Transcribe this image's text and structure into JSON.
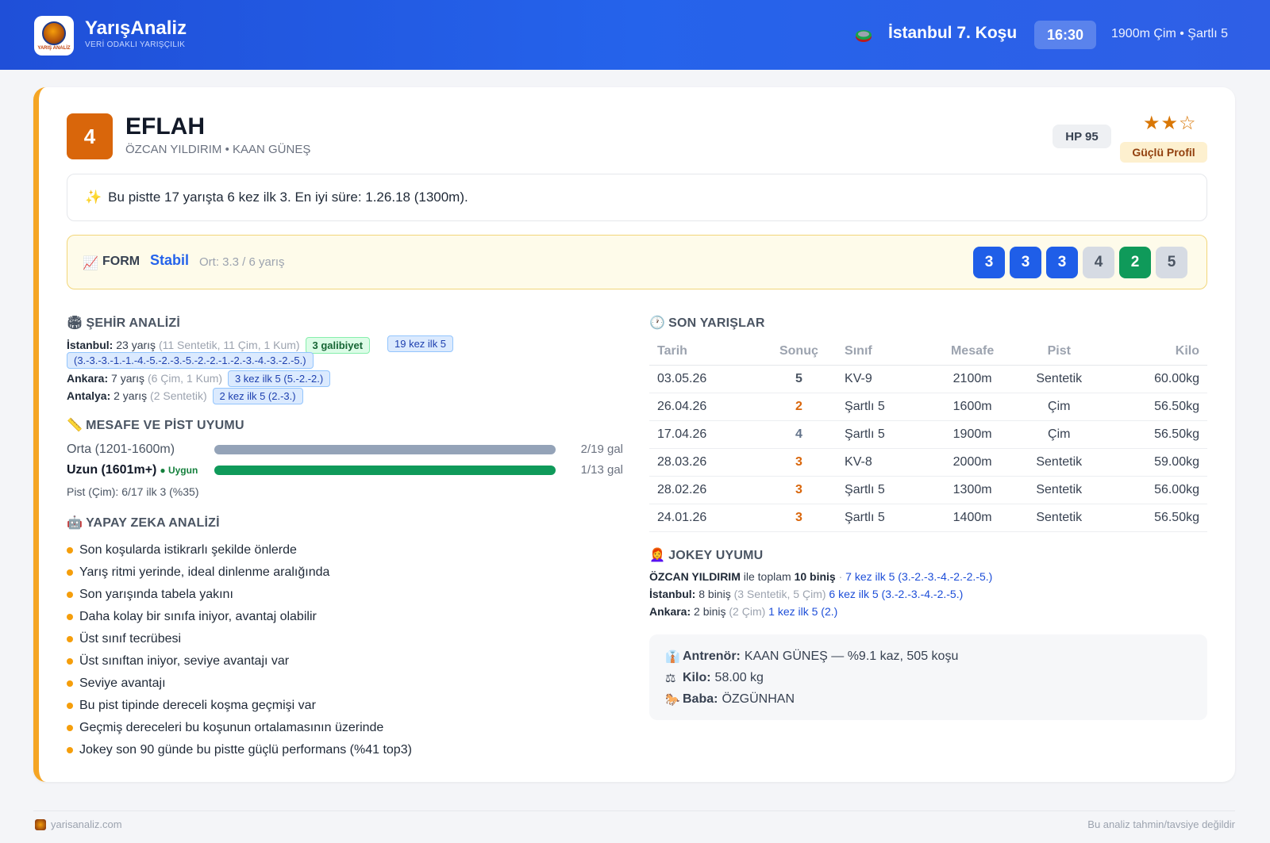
{
  "header": {
    "brand": "YarışAnaliz",
    "tagline": "VERİ ODAKLI YARIŞÇILIK",
    "logo_text": "YARIŞ ANALİZ",
    "race_title": "İstanbul 7. Koşu",
    "race_time": "16:30",
    "race_info": "1900m Çim • Şartlı 5"
  },
  "horse": {
    "number": "4",
    "name": "EFLAH",
    "subtitle": "ÖZCAN YILDIRIM • KAAN GÜNEŞ",
    "hp": "HP 95",
    "stars": "★★☆",
    "rating_filled": 2,
    "rating_max": 3,
    "profile": "Güçlü Profil"
  },
  "highlight": {
    "icon": "✨",
    "text": "Bu pistte 17 yarışta 6 kez ilk 3. En iyi süre: 1.26.18 (1300m)."
  },
  "form": {
    "icon": "📈",
    "label": "FORM",
    "status": "Stabil",
    "avg": "Ort: 3.3 / 6 yarış",
    "results": [
      "3",
      "3",
      "3",
      "4",
      "2",
      "5"
    ]
  },
  "city": {
    "title": "ŞEHİR ANALİZİ",
    "icon": "🏟",
    "rows": [
      {
        "city": "İstanbul:",
        "count": "23 yarış",
        "detail": "(11 Sentetik, 11 Çim, 1 Kum)",
        "wins": "3 galibiyet",
        "top": "19 kez ilk 5 (3.-3.-3.-1.-1.-4.-5.-2.-3.-5.-2.-2.-1.-2.-3.-4.-3.-2.-5.)"
      },
      {
        "city": "Ankara:",
        "count": "7 yarış",
        "detail": "(6 Çim, 1 Kum)",
        "top": "3 kez ilk 5 (5.-2.-2.)"
      },
      {
        "city": "Antalya:",
        "count": "2 yarış",
        "detail": "(2 Sentetik)",
        "top": "2 kez ilk 5 (2.-3.)"
      }
    ]
  },
  "distance": {
    "title": "MESAFE VE PİST UYUMU",
    "icon": "📏",
    "rows": [
      {
        "label": "Orta (1201-1600m)",
        "value": "2/19 gal"
      },
      {
        "label": "Uzun (1601m+)",
        "badge": "Uygun",
        "value": "1/13 gal"
      }
    ],
    "pist": "Pist (Çim): 6/17 ilk 3 (%35)"
  },
  "ai": {
    "title": "YAPAY ZEKA ANALİZİ",
    "icon": "🤖",
    "items": [
      "Son koşularda istikrarlı şekilde önlerde",
      "Yarış ritmi yerinde, ideal dinlenme aralığında",
      "Son yarışında tabela yakını",
      "Daha kolay bir sınıfa iniyor, avantaj olabilir",
      "Üst sınıf tecrübesi",
      "Üst sınıftan iniyor, seviye avantajı var",
      "Seviye avantajı",
      "Bu pist tipinde dereceli koşma geçmişi var",
      "Geçmiş dereceleri bu koşunun ortalamasının üzerinde",
      "Jokey son 90 günde bu pistte güçlü performans (%41 top3)"
    ]
  },
  "races": {
    "title": "SON YARIŞLAR",
    "icon": "🕐",
    "headers": [
      "Tarih",
      "Sonuç",
      "Sınıf",
      "Mesafe",
      "Pist",
      "Kilo"
    ],
    "rows": [
      [
        "03.05.26",
        "5",
        "KV-9",
        "2100m",
        "Sentetik",
        "60.00kg"
      ],
      [
        "26.04.26",
        "2",
        "Şartlı 5",
        "1600m",
        "Çim",
        "56.50kg"
      ],
      [
        "17.04.26",
        "4",
        "Şartlı 5",
        "1900m",
        "Çim",
        "56.50kg"
      ],
      [
        "28.03.26",
        "3",
        "KV-8",
        "2000m",
        "Sentetik",
        "59.00kg"
      ],
      [
        "28.02.26",
        "3",
        "Şartlı 5",
        "1300m",
        "Sentetik",
        "56.00kg"
      ],
      [
        "24.01.26",
        "3",
        "Şartlı 5",
        "1400m",
        "Sentetik",
        "56.50kg"
      ]
    ]
  },
  "jockey": {
    "title": "JOKEY UYUMU",
    "icon": "👩‍🦰",
    "name": "ÖZCAN YILDIRIM",
    "total_pre": "ile toplam",
    "total": "10 biniş",
    "total_sep": "·",
    "total_top": "7 kez ilk 5 (3.-2.-3.-4.-2.-2.-5.)",
    "istanbul_label": "İstanbul:",
    "istanbul_count": "8 biniş",
    "istanbul_detail": "(3 Sentetik, 5 Çim)",
    "istanbul_top": "6 kez ilk 5 (3.-2.-3.-4.-2.-5.)",
    "ankara_label": "Ankara:",
    "ankara_count": "2 biniş",
    "ankara_detail": "(2 Çim)",
    "ankara_top": "1 kez ilk 5 (2.)"
  },
  "info": {
    "trainer_icon": "👔",
    "trainer_label": "Antrenör:",
    "trainer_value": "KAAN GÜNEŞ — %9.1 kaz, 505 koşu",
    "kilo_icon": "⚖",
    "kilo_label": "Kilo:",
    "kilo_value": "58.00 kg",
    "baba_icon": "🐎",
    "baba_label": "Baba:",
    "baba_value": "ÖZGÜNHAN"
  },
  "footer": {
    "site": "yarisanaliz.com",
    "disclaimer": "Bu analiz tahmin/tavsiye değildir"
  },
  "colors": {
    "accent": "#2563eb",
    "card_border": "#f5a524",
    "number_badge": "#d9660b",
    "result_green": "#0f9a5a"
  }
}
